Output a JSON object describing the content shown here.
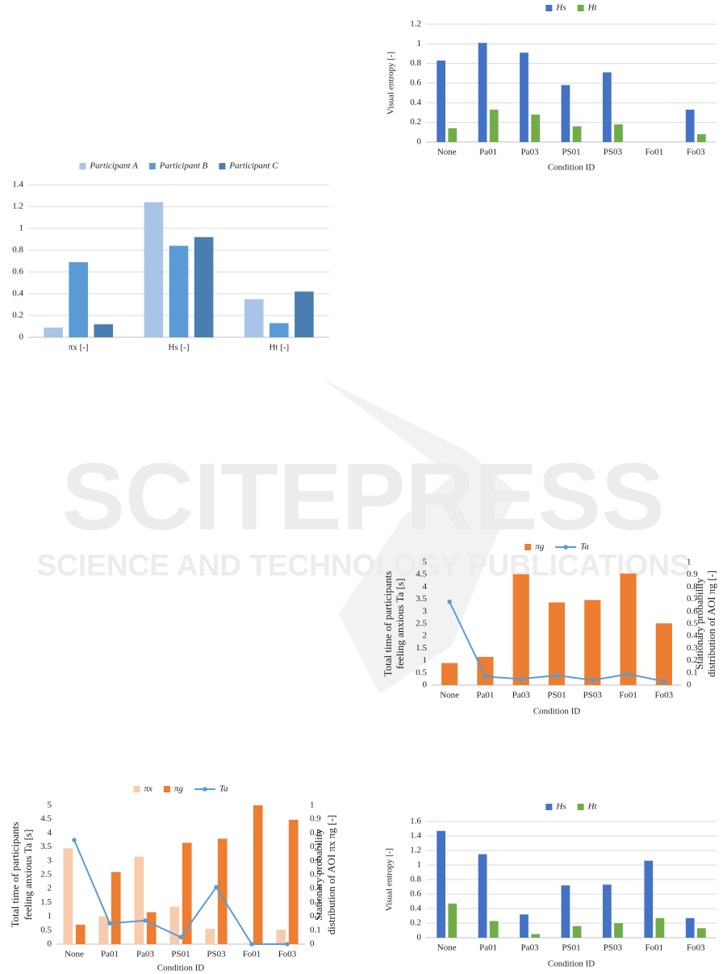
{
  "watermark": {
    "title": "SCITEPRESS",
    "subtitle": "SCIENCE AND TECHNOLOGY PUBLICATIONS"
  },
  "chart_data": [
    {
      "type": "bar",
      "categories": [
        "None",
        "Pa01",
        "Pa03",
        "PS01",
        "PS03",
        "Fo01",
        "Fo03"
      ],
      "series": [
        {
          "name": "Hs",
          "color": "#4472c4",
          "values": [
            0.83,
            1.01,
            0.91,
            0.58,
            0.71,
            0,
            0.33
          ]
        },
        {
          "name": "Ht",
          "color": "#70ad47",
          "values": [
            0.14,
            0.33,
            0.28,
            0.16,
            0.18,
            0,
            0.08
          ]
        }
      ],
      "ylabel": [
        "Visual entropy [-]"
      ],
      "xlabel": "Condition ID",
      "ylim": [
        0,
        1.2
      ],
      "yticks": [
        0,
        0.2,
        0.4,
        0.6,
        0.8,
        1,
        1.2
      ],
      "grid": true,
      "legend": "top"
    },
    {
      "type": "bar",
      "categories": [
        "πx [-]",
        "Hs [-]",
        "Ht [-]"
      ],
      "series": [
        {
          "name": "Participant A",
          "color": "#a9c4e6",
          "values": [
            0.09,
            1.24,
            0.35
          ]
        },
        {
          "name": "Participant B",
          "color": "#5b9bd5",
          "values": [
            0.69,
            0.84,
            0.13
          ]
        },
        {
          "name": "Participant C",
          "color": "#4a7eb0",
          "values": [
            0.12,
            0.92,
            0.42
          ]
        }
      ],
      "ylim": [
        0,
        1.4
      ],
      "yticks": [
        0,
        0.2,
        0.4,
        0.6,
        0.8,
        1,
        1.2,
        1.4
      ],
      "grid": true,
      "legend": "top"
    },
    {
      "type": "bar",
      "categories": [
        "None",
        "Pa01",
        "Pa03",
        "PS01",
        "PS03",
        "Fo01",
        "Fo03"
      ],
      "series": [
        {
          "name": "πg",
          "color": "#ed7d31",
          "values": [
            0.9,
            1.15,
            4.52,
            3.37,
            3.47,
            4.55,
            2.52
          ]
        },
        {
          "name": "Ta",
          "color": "#5b9bd5",
          "type": "line",
          "axis": "y2",
          "values": [
            0.68,
            0.07,
            0.05,
            0.08,
            0.04,
            0.09,
            0.03
          ]
        }
      ],
      "ylabel": [
        "Total time of participants",
        "feeling anxious  Ta [s]"
      ],
      "y2label": [
        "Stationary probability",
        "distribution of AOI  πg  [-]"
      ],
      "xlabel": "Condition ID",
      "ylim": [
        0,
        5
      ],
      "yticks": [
        0,
        0.5,
        1,
        1.5,
        2,
        2.5,
        3,
        3.5,
        4,
        4.5,
        5
      ],
      "y2lim": [
        0,
        1
      ],
      "y2ticks": [
        0,
        0.1,
        0.2,
        0.3,
        0.4,
        0.5,
        0.6,
        0.7,
        0.8,
        0.9,
        1
      ],
      "grid": false,
      "legend": "top"
    },
    {
      "type": "bar",
      "categories": [
        "None",
        "Pa01",
        "Pa03",
        "PS01",
        "PS03",
        "Fo01",
        "Fo03"
      ],
      "series": [
        {
          "name": "πx",
          "color": "#f8cbad",
          "values": [
            3.45,
            1.0,
            3.15,
            1.35,
            0.55,
            0,
            0.52
          ]
        },
        {
          "name": "πg",
          "color": "#ed7d31",
          "values": [
            0.7,
            2.6,
            1.15,
            3.65,
            3.8,
            5.0,
            4.48
          ]
        },
        {
          "name": "Ta",
          "color": "#5b9bd5",
          "type": "line",
          "axis": "y2",
          "values": [
            0.75,
            0.15,
            0.17,
            0.05,
            0.41,
            0,
            0
          ]
        }
      ],
      "ylabel": [
        "Total time of participants",
        "feeling anxious  Ta [s]"
      ],
      "y2label": [
        "Stationary probability",
        "distribution of AOI  πx  πg  [-]"
      ],
      "xlabel": "Condition ID",
      "ylim": [
        0,
        5
      ],
      "yticks": [
        0,
        0.5,
        1,
        1.5,
        2,
        2.5,
        3,
        3.5,
        4,
        4.5,
        5
      ],
      "y2lim": [
        0,
        1
      ],
      "y2ticks": [
        0,
        0.1,
        0.2,
        0.3,
        0.4,
        0.5,
        0.6,
        0.7,
        0.8,
        0.9,
        1
      ],
      "grid": false,
      "legend": "top"
    },
    {
      "type": "bar",
      "categories": [
        "None",
        "Pa01",
        "Pa03",
        "PS01",
        "PS03",
        "Fo01",
        "Fo03"
      ],
      "series": [
        {
          "name": "Hs",
          "color": "#4472c4",
          "values": [
            1.47,
            1.15,
            0.32,
            0.72,
            0.73,
            1.06,
            0.27
          ]
        },
        {
          "name": "Ht",
          "color": "#70ad47",
          "values": [
            0.47,
            0.23,
            0.05,
            0.16,
            0.2,
            0.27,
            0.13
          ]
        }
      ],
      "ylabel": [
        "Visual entropy [-]"
      ],
      "xlabel": "Condition ID",
      "ylim": [
        0,
        1.6
      ],
      "yticks": [
        0,
        0.2,
        0.4,
        0.6,
        0.8,
        1,
        1.2,
        1.4,
        1.6
      ],
      "grid": true,
      "legend": "top"
    }
  ]
}
